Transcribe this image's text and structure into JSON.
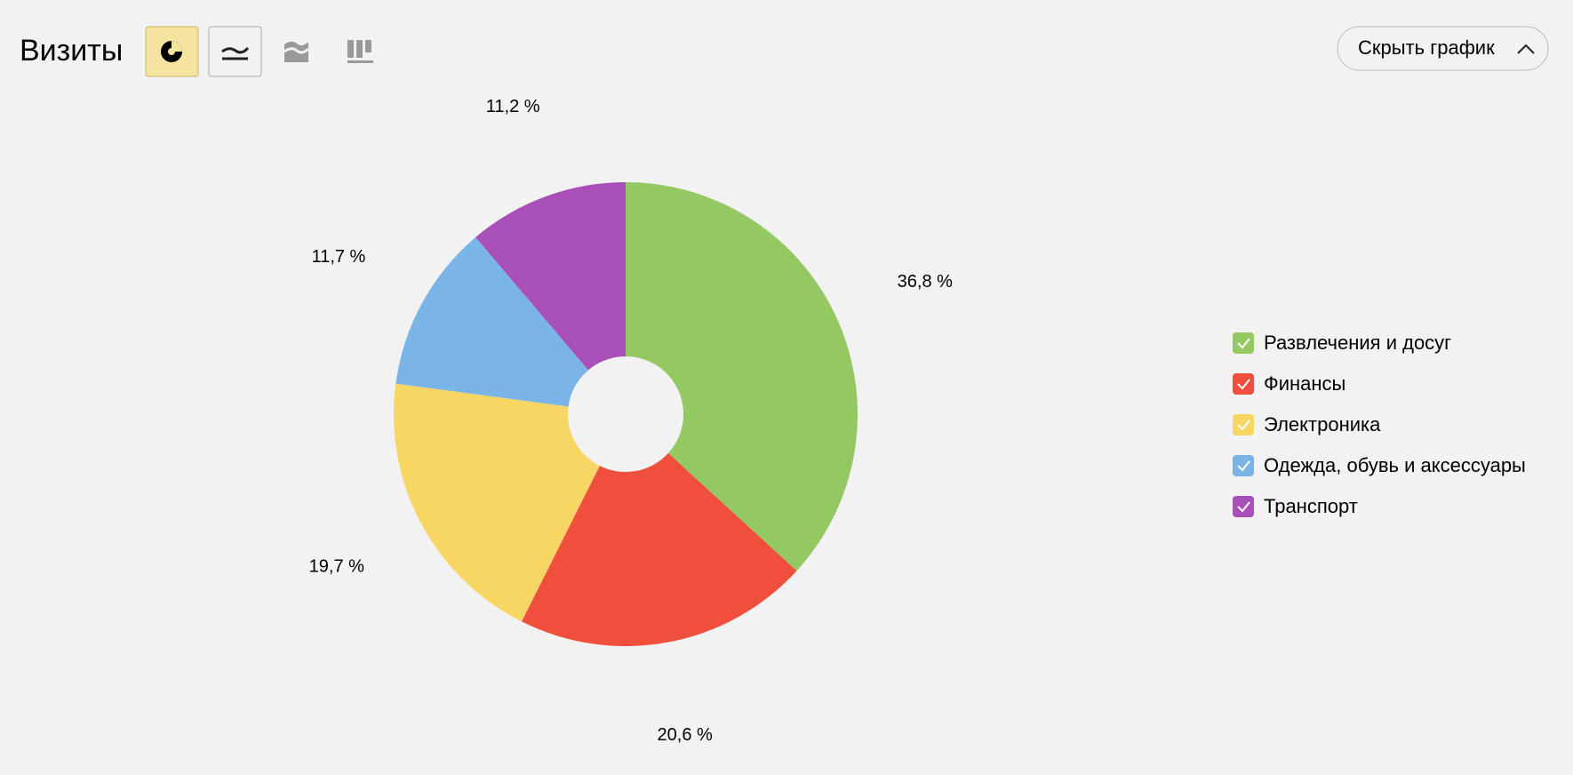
{
  "header": {
    "title": "Визиты",
    "button": "Скрыть график"
  },
  "chart_data": {
    "type": "pie",
    "categories": [
      "Развлечения и досуг",
      "Финансы",
      "Электроника",
      "Одежда, обувь и аксессуары",
      "Транспорт"
    ],
    "values": [
      36.8,
      20.6,
      19.7,
      11.7,
      11.2
    ],
    "value_labels": [
      "36,8 %",
      "20,6 %",
      "19,7 %",
      "11,7 %",
      "11,2 %"
    ],
    "colors": [
      "#94c862",
      "#f04f3e",
      "#f8d664",
      "#7bb5e7",
      "#a84fb8"
    ]
  }
}
